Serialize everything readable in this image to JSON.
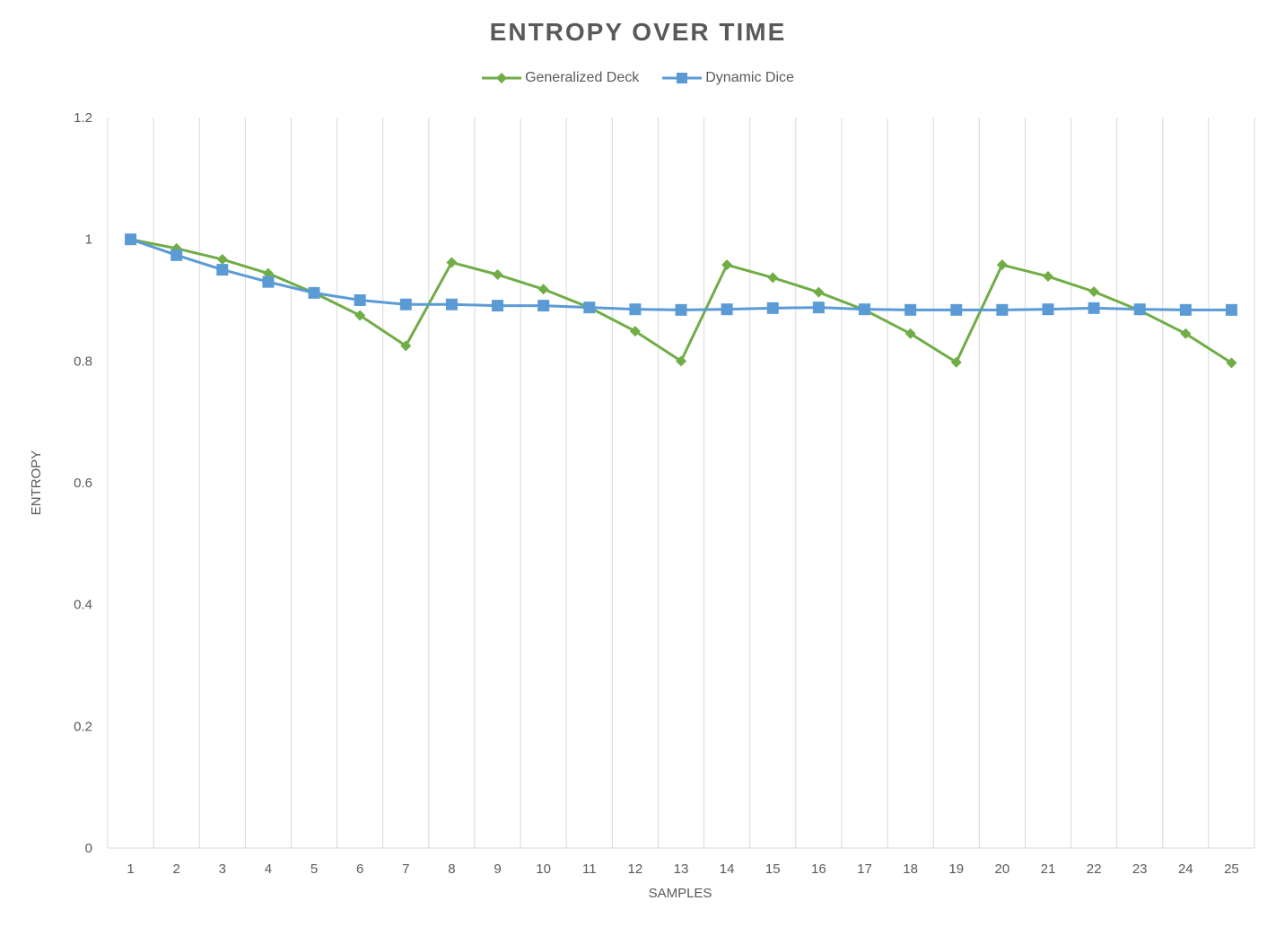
{
  "chart_data": {
    "type": "line",
    "title": "ENTROPY OVER TIME",
    "xlabel": "SAMPLES",
    "ylabel": "ENTROPY",
    "ylim": [
      0,
      1.2
    ],
    "yticks": [
      "0",
      "0.2",
      "0.4",
      "0.6",
      "0.8",
      "1",
      "1.2"
    ],
    "categories": [
      "1",
      "2",
      "3",
      "4",
      "5",
      "6",
      "7",
      "8",
      "9",
      "10",
      "11",
      "12",
      "13",
      "14",
      "15",
      "16",
      "17",
      "18",
      "19",
      "20",
      "21",
      "22",
      "23",
      "24",
      "25"
    ],
    "grid": "vertical",
    "legend_position": "top",
    "series": [
      {
        "name": "Generalized Deck",
        "color": "#70ad47",
        "marker": "diamond",
        "values": [
          1.0,
          0.985,
          0.967,
          0.944,
          0.912,
          0.875,
          0.825,
          0.962,
          0.942,
          0.918,
          0.888,
          0.849,
          0.8,
          0.958,
          0.937,
          0.913,
          0.884,
          0.845,
          0.798,
          0.958,
          0.939,
          0.914,
          0.883,
          0.845,
          0.797
        ]
      },
      {
        "name": "Dynamic Dice",
        "color": "#5b9bd5",
        "marker": "square",
        "values": [
          1.0,
          0.974,
          0.95,
          0.93,
          0.912,
          0.9,
          0.893,
          0.893,
          0.891,
          0.891,
          0.888,
          0.885,
          0.884,
          0.885,
          0.887,
          0.888,
          0.885,
          0.884,
          0.884,
          0.884,
          0.885,
          0.887,
          0.885,
          0.884,
          0.884
        ]
      }
    ]
  }
}
